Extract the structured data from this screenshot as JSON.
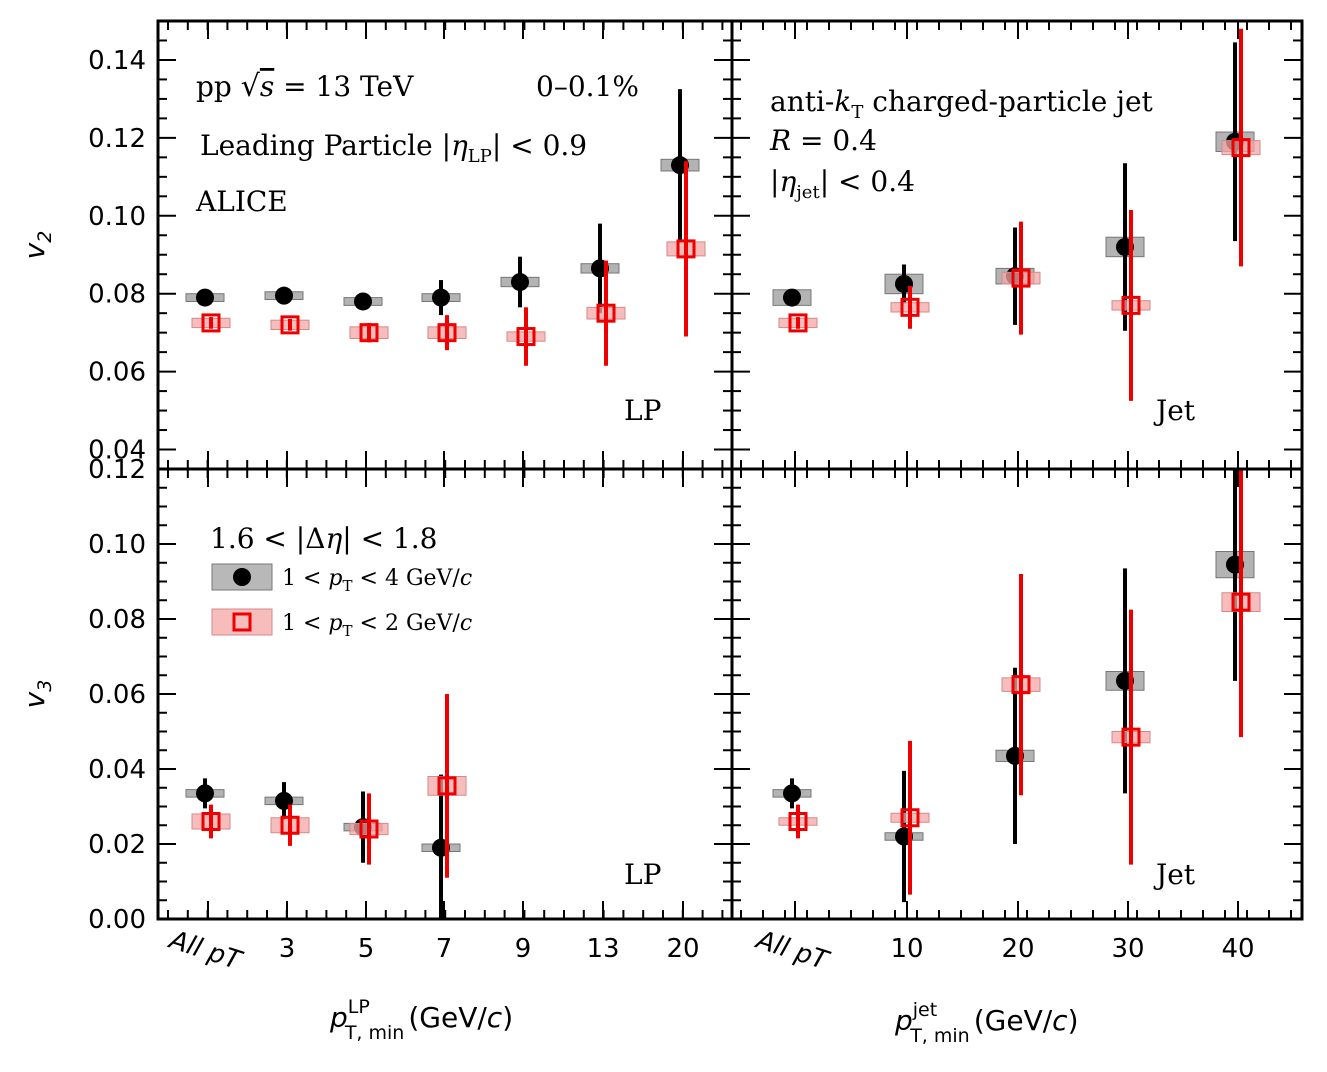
{
  "figure": {
    "colors": {
      "black": "#000000",
      "red": "#ee0000",
      "black_box": "#9a9a9a",
      "red_box": "#f4a5a5"
    }
  },
  "annotations": {
    "system": "pp √s = 13 TeV",
    "centrality": "0–0.1%",
    "lp_selection": "Leading Particle |η_LP| < 0.9",
    "experiment": "ALICE",
    "jet_line1": "anti-k_T charged-particle jet",
    "jet_line2": "R = 0.4",
    "jet_line3": "|η_jet| < 0.4",
    "panel_tag_lp": "LP",
    "panel_tag_jet": "Jet"
  },
  "legend": {
    "header": "1.6 < |Δη| < 1.8",
    "black_label": "1 < p_T < 4 GeV/c",
    "red_label": "1 < p_T < 2 GeV/c"
  },
  "axes": {
    "y_top_label": "v2",
    "y_bottom_label": "v3",
    "x_left_label": "p_T,min^LP (GeV/c)",
    "x_right_label": "p_T,min^jet (GeV/c)",
    "x_left_ticks": [
      "All p_T",
      "3",
      "5",
      "7",
      "9",
      "13",
      "20"
    ],
    "x_right_ticks": [
      "All p_T",
      "10",
      "20",
      "30",
      "40"
    ],
    "y_top_ticks": [
      "0.04",
      "0.06",
      "0.08",
      "0.10",
      "0.12",
      "0.14"
    ],
    "y_bottom_ticks": [
      "0.00",
      "0.02",
      "0.04",
      "0.06",
      "0.08",
      "0.10",
      "0.12"
    ]
  },
  "chart_data": [
    {
      "type": "scatter",
      "panel": "top-left",
      "ylabel": "v2",
      "xlabel": "",
      "ylim": [
        0.035,
        0.15
      ],
      "categories": [
        "All p_T",
        "3",
        "5",
        "7",
        "9",
        "13",
        "20"
      ],
      "series": [
        {
          "name": "1 < p_T < 4 GeV/c",
          "marker": "circle",
          "values": [
            0.079,
            0.0795,
            0.078,
            0.079,
            0.083,
            0.0865,
            0.113
          ],
          "stat_err": [
            0.001,
            0.001,
            0.0015,
            0.0045,
            0.0065,
            0.0115,
            0.0195
          ],
          "sys_err": [
            0.001,
            0.001,
            0.001,
            0.001,
            0.0012,
            0.0012,
            0.0015
          ]
        },
        {
          "name": "1 < p_T < 2 GeV/c",
          "marker": "open-square",
          "values": [
            0.0725,
            0.072,
            0.07,
            0.07,
            0.069,
            0.075,
            0.0915
          ],
          "stat_err": [
            0.0015,
            0.0015,
            0.0025,
            0.0045,
            0.0075,
            0.0135,
            0.0225
          ],
          "sys_err": [
            0.0012,
            0.0012,
            0.0015,
            0.0015,
            0.0012,
            0.0015,
            0.0018
          ]
        }
      ]
    },
    {
      "type": "scatter",
      "panel": "top-right",
      "ylabel": "v2",
      "xlabel": "",
      "ylim": [
        0.035,
        0.15
      ],
      "categories": [
        "All p_T",
        "10",
        "20",
        "30",
        "40"
      ],
      "series": [
        {
          "name": "1 < p_T < 4 GeV/c",
          "marker": "circle",
          "values": [
            0.079,
            0.0825,
            0.0845,
            0.092,
            0.119
          ],
          "stat_err": [
            0.001,
            0.005,
            0.0125,
            0.0215,
            0.0255
          ],
          "sys_err": [
            0.002,
            0.0025,
            0.002,
            0.0025,
            0.0025
          ]
        },
        {
          "name": "1 < p_T < 2 GeV/c",
          "marker": "open-square",
          "values": [
            0.0725,
            0.0765,
            0.084,
            0.077,
            0.1175
          ],
          "stat_err": [
            0.0015,
            0.0055,
            0.0145,
            0.0245,
            0.0305
          ],
          "sys_err": [
            0.0012,
            0.0012,
            0.0015,
            0.0012,
            0.0018
          ]
        }
      ]
    },
    {
      "type": "scatter",
      "panel": "bottom-left",
      "ylabel": "v3",
      "xlabel": "p_T,min^LP (GeV/c)",
      "ylim": [
        0.0,
        0.12
      ],
      "categories": [
        "All p_T",
        "3",
        "5",
        "7",
        "9",
        "13",
        "20"
      ],
      "series": [
        {
          "name": "1 < p_T < 4 GeV/c",
          "marker": "circle",
          "values": [
            0.0335,
            0.0315,
            0.0245,
            0.019
          ],
          "stat_err": [
            0.004,
            0.005,
            0.0095,
            0.0195
          ],
          "sys_err": [
            0.001,
            0.001,
            0.001,
            0.001
          ]
        },
        {
          "name": "1 < p_T < 2 GeV/c",
          "marker": "open-square",
          "values": [
            0.026,
            0.025,
            0.024,
            0.0355
          ],
          "stat_err": [
            0.0045,
            0.0055,
            0.0095,
            0.0245
          ],
          "sys_err": [
            0.002,
            0.002,
            0.0015,
            0.0025
          ]
        }
      ]
    },
    {
      "type": "scatter",
      "panel": "bottom-right",
      "ylabel": "v3",
      "xlabel": "p_T,min^jet (GeV/c)",
      "ylim": [
        0.0,
        0.12
      ],
      "categories": [
        "All p_T",
        "10",
        "20",
        "30",
        "40"
      ],
      "series": [
        {
          "name": "1 < p_T < 4 GeV/c",
          "marker": "circle",
          "values": [
            0.0335,
            0.022,
            0.0435,
            0.0635,
            0.0945
          ],
          "stat_err": [
            0.004,
            0.0175,
            0.0235,
            0.03,
            0.031
          ],
          "sys_err": [
            0.001,
            0.001,
            0.0015,
            0.0025,
            0.0035
          ]
        },
        {
          "name": "1 < p_T < 2 GeV/c",
          "marker": "open-square",
          "values": [
            0.026,
            0.027,
            0.0625,
            0.0485,
            0.0845
          ],
          "stat_err": [
            0.0045,
            0.0205,
            0.0295,
            0.034,
            0.036
          ],
          "sys_err": [
            0.001,
            0.0012,
            0.0018,
            0.0015,
            0.0025
          ]
        }
      ]
    }
  ]
}
